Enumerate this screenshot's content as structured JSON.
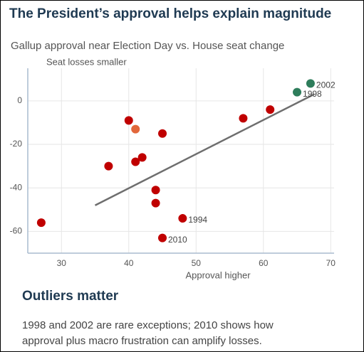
{
  "chart_data": {
    "type": "scatter",
    "title": "The President’s approval helps explain magnitude",
    "subtitle": "Gallup approval near Election Day vs. House seat change",
    "y_label": "Seat losses smaller",
    "x_label": "Approval higher",
    "xlim": [
      25,
      70.5
    ],
    "ylim": [
      -70,
      15
    ],
    "xticks": [
      30,
      40,
      50,
      60,
      70
    ],
    "yticks": [
      0,
      -20,
      -40,
      -60
    ],
    "grid": true,
    "series": [
      {
        "color": "#c00000",
        "x": [
          27,
          37,
          40,
          41,
          42,
          45,
          44,
          44,
          48,
          45,
          57,
          61
        ],
        "values": [
          -56,
          -30,
          -9,
          -28,
          -26,
          -15,
          -41,
          -47,
          -54,
          -63,
          -8,
          -4
        ],
        "point_labels": [
          null,
          null,
          null,
          null,
          null,
          null,
          null,
          null,
          "1994",
          "2010",
          null,
          null
        ]
      },
      {
        "color": "#e2673b",
        "x": [
          41
        ],
        "values": [
          -13
        ],
        "point_labels": [
          null
        ]
      },
      {
        "color": "#2e7d5b",
        "x": [
          65,
          67
        ],
        "values": [
          4,
          8
        ],
        "point_labels": [
          "1998",
          "2002"
        ]
      }
    ],
    "trendline": {
      "color": "#6e6e6e",
      "x": [
        35,
        67.5
      ],
      "values": [
        -48,
        3
      ]
    }
  },
  "section": {
    "heading": "Outliers matter",
    "body": [
      "1998 and 2002 are rare exceptions; 2010 shows how",
      "approval plus macro frustration can amplify losses."
    ]
  }
}
